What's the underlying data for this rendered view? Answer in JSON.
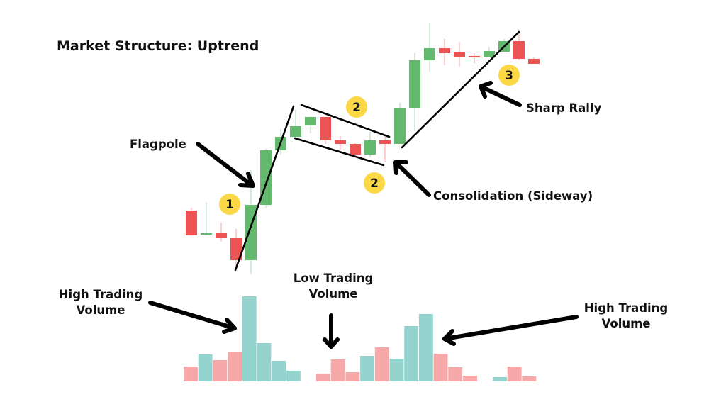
{
  "title": "Market Structure: Uptrend",
  "labels": {
    "flagpole": "Flagpole",
    "consolidation": "Consolidation (Sideway)",
    "sharp_rally": "Sharp Rally",
    "high_volume_left": [
      "High Trading",
      "Volume"
    ],
    "low_volume": [
      "Low Trading",
      "Volume"
    ],
    "high_volume_right": [
      "High Trading",
      "Volume"
    ]
  },
  "markers": [
    "1",
    "2",
    "2",
    "3"
  ],
  "colors": {
    "bull_candle": "#63b96e",
    "bear_candle": "#ee5353",
    "volume_up": "#95d4ce",
    "volume_down": "#f6a9a8",
    "marker": "#fcd846",
    "line": "#000000"
  }
}
